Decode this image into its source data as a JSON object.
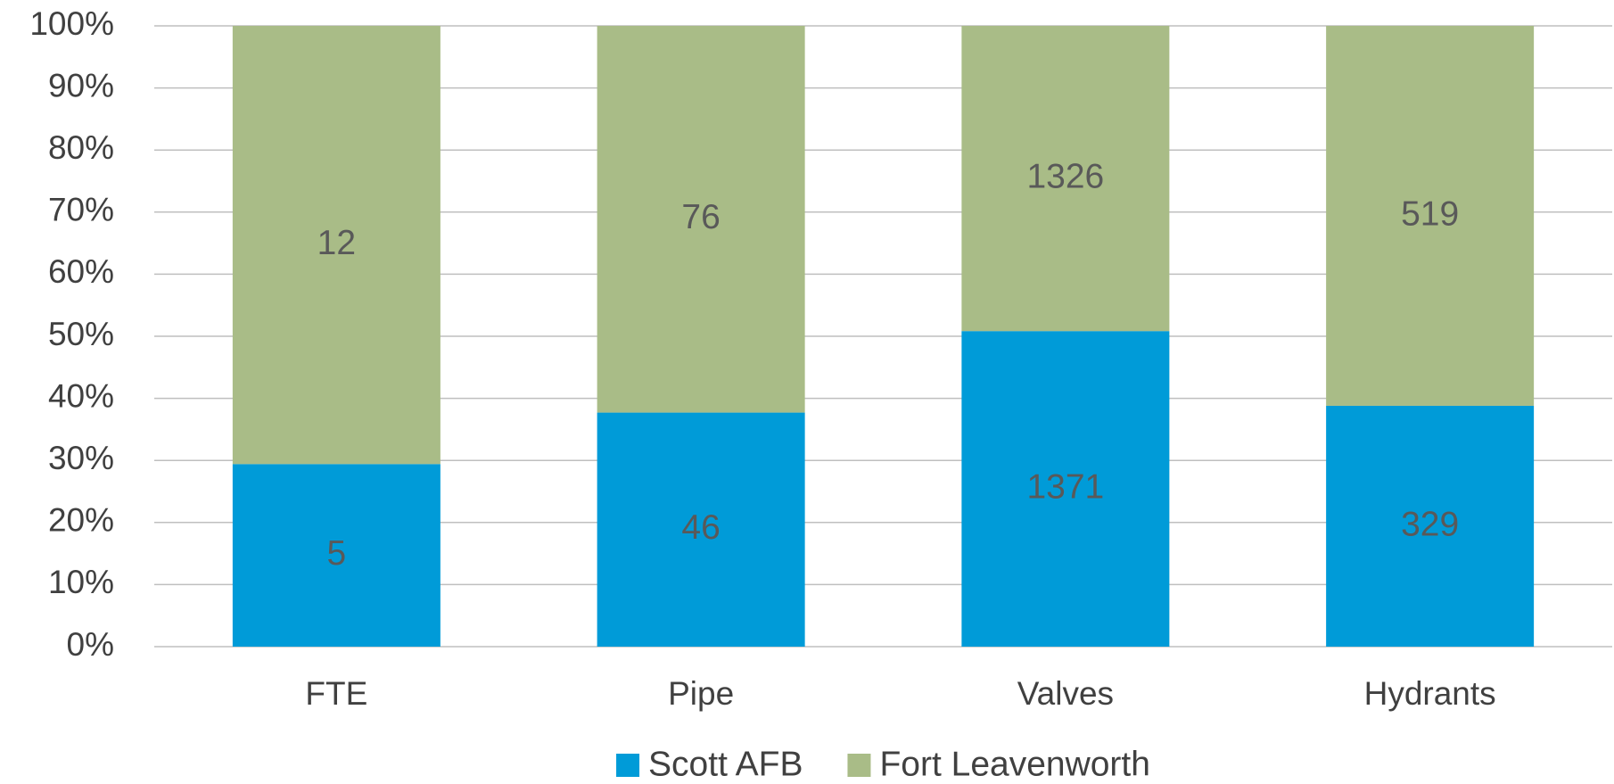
{
  "chart_data": {
    "type": "bar",
    "stacking": "percent",
    "categories": [
      "FTE",
      "Pipe",
      "Valves",
      "Hydrants"
    ],
    "series": [
      {
        "name": "Scott AFB",
        "color": "#009bd8",
        "values": [
          5,
          46,
          1371,
          329
        ]
      },
      {
        "name": "Fort Leavenworth",
        "color": "#a9bc87",
        "values": [
          12,
          76,
          1326,
          519
        ]
      }
    ],
    "ylim": [
      0,
      100
    ],
    "yticks": [
      {
        "value": 0,
        "label": "0%"
      },
      {
        "value": 10,
        "label": "10%"
      },
      {
        "value": 20,
        "label": "20%"
      },
      {
        "value": 30,
        "label": "30%"
      },
      {
        "value": 40,
        "label": "40%"
      },
      {
        "value": 50,
        "label": "50%"
      },
      {
        "value": 60,
        "label": "60%"
      },
      {
        "value": 70,
        "label": "70%"
      },
      {
        "value": 80,
        "label": "80%"
      },
      {
        "value": 90,
        "label": "90%"
      },
      {
        "value": 100,
        "label": "100%"
      }
    ],
    "grid": true,
    "legend": "bottom"
  }
}
